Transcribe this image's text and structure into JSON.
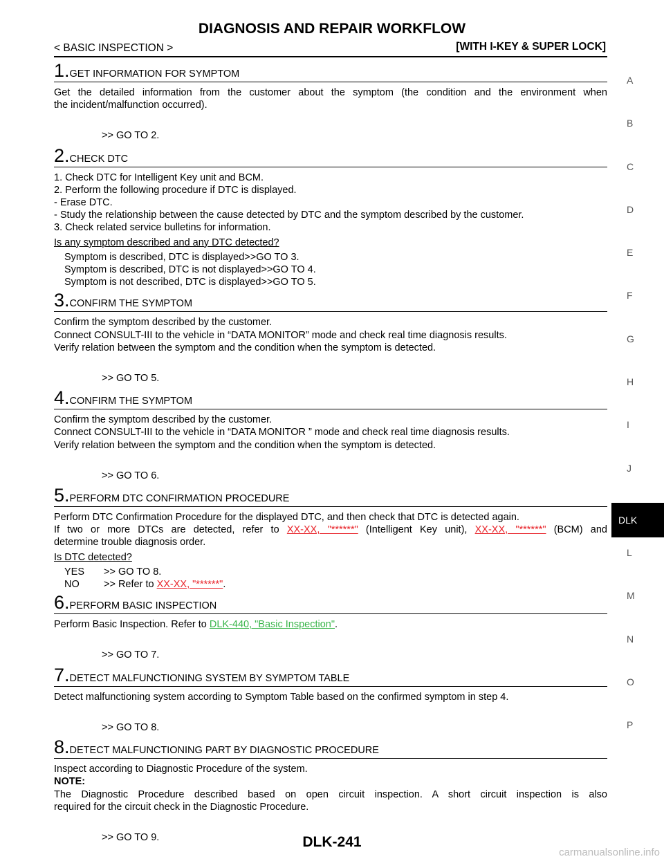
{
  "header": {
    "title": "DIAGNOSIS AND REPAIR WORKFLOW",
    "section": "< BASIC INSPECTION >",
    "variant": "[WITH I-KEY & SUPER LOCK]"
  },
  "side_index": [
    "A",
    "B",
    "C",
    "D",
    "E",
    "F",
    "G",
    "H",
    "I",
    "J",
    "DLK",
    "L",
    "M",
    "N",
    "O",
    "P"
  ],
  "active_index": 10,
  "steps": [
    {
      "number": "1.",
      "title": "GET INFORMATION FOR SYMPTOM",
      "body": [
        {
          "kind": "p",
          "lines": [
            [
              "Get the detailed information from the customer about the symptom (the condition and the environment when"
            ],
            [
              "the incident/malfunction occurred)."
            ]
          ]
        },
        {
          "kind": "goto",
          "lines": [
            [
              ">> GO TO 2."
            ]
          ]
        }
      ]
    },
    {
      "number": "2.",
      "title": "CHECK DTC",
      "body": [
        {
          "kind": "p",
          "lines": [
            [
              "1. Check DTC for Intelligent Key unit and BCM."
            ]
          ]
        },
        {
          "kind": "p",
          "lines": [
            [
              "2. Perform the following procedure if DTC is displayed."
            ]
          ]
        },
        {
          "kind": "p",
          "lines": [
            [
              "- Erase DTC."
            ]
          ]
        },
        {
          "kind": "p",
          "lines": [
            [
              "- Study the relationship between the cause detected by DTC and the symptom described by the customer."
            ]
          ]
        },
        {
          "kind": "p",
          "lines": [
            [
              "3. Check related service bulletins for information."
            ]
          ]
        },
        {
          "kind": "question",
          "lines": [
            [
              "Is any symptom described and any DTC detected?"
            ]
          ]
        },
        {
          "kind": "option",
          "lines": [
            [
              "Symptom is described, DTC is displayed>>GO TO 3."
            ]
          ]
        },
        {
          "kind": "option",
          "lines": [
            [
              "Symptom is described, DTC is not displayed>>GO TO 4."
            ]
          ]
        },
        {
          "kind": "option",
          "lines": [
            [
              "Symptom is not described, DTC is displayed>>GO TO 5."
            ]
          ]
        }
      ]
    },
    {
      "number": "3.",
      "title": "CONFIRM THE SYMPTOM",
      "body": [
        {
          "kind": "p",
          "lines": [
            [
              "Confirm the symptom described by the customer."
            ]
          ]
        },
        {
          "kind": "p",
          "lines": [
            [
              "Connect CONSULT-III to the vehicle in “DATA MONITOR” mode and check real time diagnosis results."
            ]
          ]
        },
        {
          "kind": "p",
          "lines": [
            [
              "Verify relation between the symptom and the condition when the symptom is detected."
            ]
          ]
        },
        {
          "kind": "goto",
          "lines": [
            [
              ">> GO TO 5."
            ]
          ]
        }
      ]
    },
    {
      "number": "4.",
      "title": "CONFIRM THE SYMPTOM",
      "body": [
        {
          "kind": "p",
          "lines": [
            [
              "Confirm the symptom described by the customer."
            ]
          ]
        },
        {
          "kind": "p",
          "lines": [
            [
              "Connect CONSULT-III to the vehicle in “DATA MONITOR ” mode and check real time diagnosis results."
            ]
          ]
        },
        {
          "kind": "p",
          "lines": [
            [
              "Verify relation between the symptom and the condition when the symptom is detected."
            ]
          ]
        },
        {
          "kind": "goto",
          "lines": [
            [
              ">> GO TO 6."
            ]
          ]
        }
      ]
    },
    {
      "number": "5.",
      "title": "PERFORM DTC CONFIRMATION PROCEDURE",
      "body": [
        {
          "kind": "p",
          "lines": [
            [
              "Perform DTC Confirmation Procedure for the displayed DTC, and then check that DTC is detected again."
            ]
          ]
        },
        {
          "kind": "p",
          "lines": [
            [
              "If two or more DTCs are detected, refer to ",
              {
                "text": "XX-XX, \"******\"",
                "link": "red"
              },
              " (Intelligent Key unit), ",
              {
                "text": "XX-XX, \"******\"",
                "link": "red"
              },
              " (BCM) and"
            ],
            [
              "determine trouble diagnosis order."
            ]
          ]
        },
        {
          "kind": "question",
          "lines": [
            [
              "Is DTC detected?"
            ]
          ]
        },
        {
          "kind": "option",
          "label": "YES",
          "lines": [
            [
              ">> GO TO 8."
            ]
          ]
        },
        {
          "kind": "option",
          "label": "NO",
          "lines": [
            [
              ">> Refer to ",
              {
                "text": "XX-XX, \"******\"",
                "link": "red"
              },
              "."
            ]
          ]
        }
      ]
    },
    {
      "number": "6.",
      "title": "PERFORM BASIC INSPECTION",
      "body": [
        {
          "kind": "p",
          "lines": [
            [
              "Perform Basic Inspection. Refer to ",
              {
                "text": "DLK-440, \"Basic Inspection\"",
                "link": "green"
              },
              "."
            ]
          ]
        },
        {
          "kind": "goto",
          "lines": [
            [
              ">> GO TO 7."
            ]
          ]
        }
      ]
    },
    {
      "number": "7.",
      "title": "DETECT MALFUNCTIONING SYSTEM BY SYMPTOM TABLE",
      "body": [
        {
          "kind": "p",
          "lines": [
            [
              "Detect malfunctioning system according to Symptom Table based on the confirmed symptom in step 4."
            ]
          ]
        },
        {
          "kind": "goto",
          "lines": [
            [
              ">> GO TO 8."
            ]
          ]
        }
      ]
    },
    {
      "number": "8.",
      "title": "DETECT MALFUNCTIONING PART BY DIAGNOSTIC PROCEDURE",
      "body": [
        {
          "kind": "p",
          "lines": [
            [
              "Inspect according to Diagnostic Procedure of the system."
            ]
          ]
        },
        {
          "kind": "note",
          "lines": [
            [
              "NOTE:"
            ]
          ]
        },
        {
          "kind": "p",
          "lines": [
            [
              "The Diagnostic Procedure described based on open circuit inspection. A short circuit inspection is also"
            ],
            [
              "required for the circuit check in the Diagnostic Procedure."
            ]
          ]
        },
        {
          "kind": "goto",
          "lines": [
            [
              ">> GO TO 9."
            ]
          ]
        }
      ]
    }
  ],
  "footer": {
    "page": "DLK-241",
    "watermark": "carmanualsonline.info"
  }
}
